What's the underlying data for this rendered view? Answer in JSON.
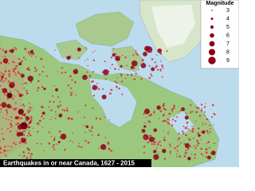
{
  "title": "Earthquakes in or near Canada, 1627 - 2015",
  "legend": {
    "title": "Magnitude",
    "items": [
      3,
      4,
      5,
      6,
      7,
      8,
      9
    ]
  }
}
